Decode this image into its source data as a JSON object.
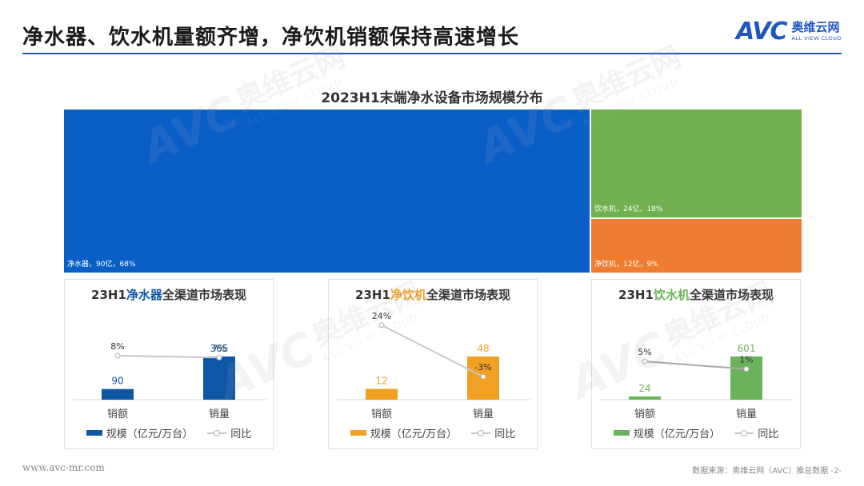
{
  "header": {
    "title": "净水器、饮水机量额齐增，净饮机销额保持高速增长",
    "brand_avc": "AVC",
    "brand_cn": "奥维云网",
    "brand_en": "ALL VIEW CLOUD"
  },
  "colors": {
    "blue": "#0a5fc7",
    "green": "#71b04e",
    "orange": "#ee7d31",
    "panel_blue": "#0e57a7",
    "panel_orange": "#f2a024",
    "panel_green": "#6bb35a",
    "yoy_line": "#c8c8c8",
    "accent": "#1e56c2"
  },
  "watermark": {
    "avc": "AVC",
    "cn": "奥维云网",
    "en": "ALL VIEW CLOUD"
  },
  "chart_data": [
    {
      "type": "treemap",
      "title": "2023H1末端净水设备市场规模分布",
      "items": [
        {
          "name": "净水器",
          "value": 90,
          "share": 68,
          "label": "净水器，90亿，68%",
          "color": "#0a5fc7"
        },
        {
          "name": "饮水机",
          "value": 24,
          "share": 18,
          "label": "饮水机，24亿，18%",
          "color": "#71b04e"
        },
        {
          "name": "净饮机",
          "value": 12,
          "share": 9,
          "label": "净饮机，12亿，9%",
          "color": "#ee7d31"
        }
      ]
    },
    {
      "type": "bar",
      "title_prefix": "23H1",
      "title_highlight": "净水器",
      "title_suffix": "全渠道市场表现",
      "categories": [
        "销额",
        "销量"
      ],
      "values": [
        90,
        365
      ],
      "value_labels": [
        "90",
        "365"
      ],
      "yoy": [
        8,
        7
      ],
      "yoy_labels": [
        "8%",
        "7%"
      ],
      "bar_color": "#0e57a7",
      "legend_bar": "规模（亿元/万台）",
      "legend_line": "同比"
    },
    {
      "type": "bar",
      "title_prefix": "23H1",
      "title_highlight": "净饮机",
      "title_suffix": "全渠道市场表现",
      "categories": [
        "销额",
        "销量"
      ],
      "values": [
        12,
        48
      ],
      "value_labels": [
        "12",
        "48"
      ],
      "yoy": [
        24,
        -3
      ],
      "yoy_labels": [
        "24%",
        "-3%"
      ],
      "bar_color": "#f2a024",
      "legend_bar": "规模（亿元/万台）",
      "legend_line": "同比"
    },
    {
      "type": "bar",
      "title_prefix": "23H1",
      "title_highlight": "饮水机",
      "title_suffix": "全渠道市场表现",
      "categories": [
        "销额",
        "销量"
      ],
      "values": [
        24,
        601
      ],
      "value_labels": [
        "24",
        "601"
      ],
      "yoy": [
        5,
        1
      ],
      "yoy_labels": [
        "5%",
        "1%"
      ],
      "bar_color": "#6bb35a",
      "legend_bar": "规模（亿元/万台）",
      "legend_line": "同比"
    }
  ],
  "footer": {
    "url": "www.avc-mr.com",
    "source": "数据来源：奥维云网（AVC）推总数据  -2-"
  }
}
